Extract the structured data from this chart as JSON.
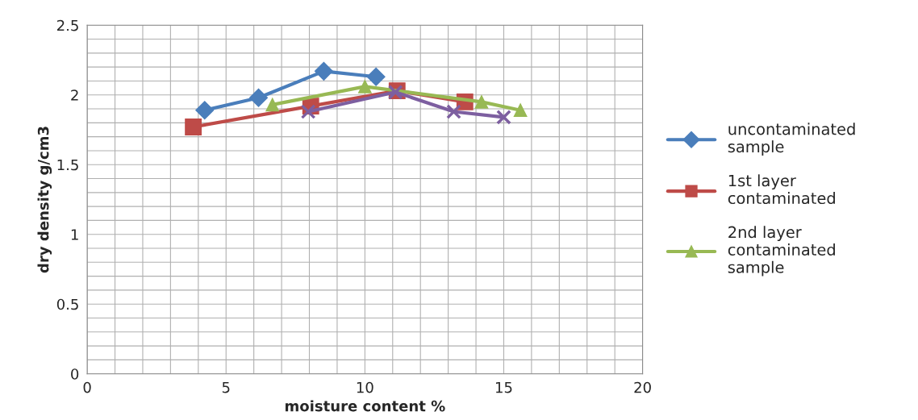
{
  "chart_data": {
    "type": "line",
    "xlabel": "moisture content %",
    "ylabel": "dry density g/cm3",
    "xlim": [
      0,
      20
    ],
    "xticks": [
      0,
      5,
      10,
      15,
      20
    ],
    "ylim": [
      0,
      2.5
    ],
    "yticks": [
      0,
      0.5,
      1,
      1.5,
      2,
      2.5
    ],
    "grid": true,
    "legend": "right",
    "series": [
      {
        "name": "uncontaminated\nsample",
        "color": "#4a7ebb",
        "marker": "diamond",
        "x": [
          4.23,
          6.17,
          8.52,
          10.4
        ],
        "values": [
          1.89,
          1.98,
          2.17,
          2.13
        ]
      },
      {
        "name": "1st layer\ncontaminated",
        "color": "#be4b48",
        "marker": "square",
        "x": [
          3.82,
          8.05,
          11.16,
          13.6
        ],
        "values": [
          1.77,
          1.92,
          2.03,
          1.95
        ]
      },
      {
        "name": "2nd layer\ncontaminated\nsample",
        "color": "#98b954",
        "marker": "triangle",
        "x": [
          6.67,
          10.0,
          14.2,
          15.6
        ],
        "values": [
          1.93,
          2.06,
          1.95,
          1.89
        ]
      },
      {
        "color": "#7d5fa0",
        "marker": "cross",
        "x": [
          7.96,
          11.1,
          13.2,
          15.0
        ],
        "values": [
          1.88,
          2.02,
          1.88,
          1.84
        ]
      }
    ]
  }
}
